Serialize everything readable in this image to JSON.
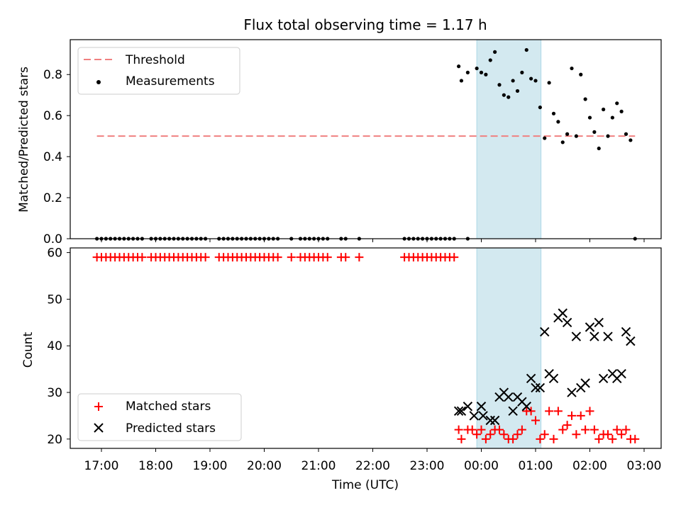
{
  "figure": {
    "title": "Flux total observing time = 1.17 h",
    "xlabel": "Time (UTC)",
    "xticks": [
      "17:00",
      "18:00",
      "19:00",
      "20:00",
      "21:00",
      "22:00",
      "23:00",
      "00:00",
      "01:00",
      "02:00",
      "03:00"
    ],
    "highlight_span": {
      "start": "23:55",
      "end": "01:06",
      "color": "#d3e9f0"
    }
  },
  "chart_data": [
    {
      "type": "scatter",
      "ylabel": "Matched/Predicted stars",
      "ylim": [
        0,
        0.97
      ],
      "yticks": [
        "0.0",
        "0.2",
        "0.4",
        "0.6",
        "0.8"
      ],
      "legend": {
        "placement": "top-left",
        "entries": [
          {
            "label": "Threshold",
            "marker": "dashed-line",
            "color": "#f08080"
          },
          {
            "label": "Measurements",
            "marker": "dot",
            "color": "#000000"
          }
        ]
      },
      "threshold": {
        "value": 0.5,
        "x_start": "16:55",
        "x_end": "02:50",
        "color": "#f08080"
      },
      "series": [
        {
          "name": "Measurements",
          "color": "#000000",
          "points": [
            [
              "16:55",
              0
            ],
            [
              "17:00",
              0
            ],
            [
              "17:05",
              0
            ],
            [
              "17:10",
              0
            ],
            [
              "17:15",
              0
            ],
            [
              "17:20",
              0
            ],
            [
              "17:25",
              0
            ],
            [
              "17:30",
              0
            ],
            [
              "17:35",
              0
            ],
            [
              "17:40",
              0
            ],
            [
              "17:45",
              0
            ],
            [
              "17:55",
              0
            ],
            [
              "18:00",
              0
            ],
            [
              "18:05",
              0
            ],
            [
              "18:10",
              0
            ],
            [
              "18:15",
              0
            ],
            [
              "18:20",
              0
            ],
            [
              "18:25",
              0
            ],
            [
              "18:30",
              0
            ],
            [
              "18:35",
              0
            ],
            [
              "18:40",
              0
            ],
            [
              "18:45",
              0
            ],
            [
              "18:50",
              0
            ],
            [
              "18:55",
              0
            ],
            [
              "19:10",
              0
            ],
            [
              "19:15",
              0
            ],
            [
              "19:20",
              0
            ],
            [
              "19:25",
              0
            ],
            [
              "19:30",
              0
            ],
            [
              "19:35",
              0
            ],
            [
              "19:40",
              0
            ],
            [
              "19:45",
              0
            ],
            [
              "19:50",
              0
            ],
            [
              "19:55",
              0
            ],
            [
              "20:00",
              0
            ],
            [
              "20:05",
              0
            ],
            [
              "20:10",
              0
            ],
            [
              "20:15",
              0
            ],
            [
              "20:30",
              0
            ],
            [
              "20:40",
              0
            ],
            [
              "20:45",
              0
            ],
            [
              "20:50",
              0
            ],
            [
              "20:55",
              0
            ],
            [
              "21:00",
              0
            ],
            [
              "21:05",
              0
            ],
            [
              "21:10",
              0
            ],
            [
              "21:25",
              0
            ],
            [
              "21:30",
              0
            ],
            [
              "21:45",
              0
            ],
            [
              "22:35",
              0
            ],
            [
              "22:40",
              0
            ],
            [
              "22:45",
              0
            ],
            [
              "22:50",
              0
            ],
            [
              "22:55",
              0
            ],
            [
              "23:00",
              0
            ],
            [
              "23:05",
              0
            ],
            [
              "23:10",
              0
            ],
            [
              "23:15",
              0
            ],
            [
              "23:20",
              0
            ],
            [
              "23:25",
              0
            ],
            [
              "23:30",
              0
            ],
            [
              "23:45",
              0
            ],
            [
              "23:35",
              0.84
            ],
            [
              "23:38",
              0.77
            ],
            [
              "23:45",
              0.81
            ],
            [
              "23:55",
              0.83
            ],
            [
              "24:00",
              0.81
            ],
            [
              "24:05",
              0.8
            ],
            [
              "24:10",
              0.87
            ],
            [
              "24:15",
              0.91
            ],
            [
              "24:20",
              0.75
            ],
            [
              "24:25",
              0.7
            ],
            [
              "24:30",
              0.69
            ],
            [
              "24:35",
              0.77
            ],
            [
              "24:40",
              0.72
            ],
            [
              "24:45",
              0.81
            ],
            [
              "24:50",
              0.92
            ],
            [
              "24:55",
              0.78
            ],
            [
              "25:00",
              0.77
            ],
            [
              "25:05",
              0.64
            ],
            [
              "25:10",
              0.49
            ],
            [
              "25:15",
              0.76
            ],
            [
              "25:20",
              0.61
            ],
            [
              "25:25",
              0.57
            ],
            [
              "25:30",
              0.47
            ],
            [
              "25:35",
              0.51
            ],
            [
              "25:40",
              0.83
            ],
            [
              "25:45",
              0.5
            ],
            [
              "25:50",
              0.8
            ],
            [
              "25:55",
              0.68
            ],
            [
              "26:00",
              0.59
            ],
            [
              "26:05",
              0.52
            ],
            [
              "26:10",
              0.44
            ],
            [
              "26:15",
              0.63
            ],
            [
              "26:20",
              0.5
            ],
            [
              "26:25",
              0.59
            ],
            [
              "26:30",
              0.66
            ],
            [
              "26:35",
              0.62
            ],
            [
              "26:40",
              0.51
            ],
            [
              "26:45",
              0.48
            ],
            [
              "26:50",
              0
            ]
          ]
        }
      ]
    },
    {
      "type": "scatter",
      "ylabel": "Count",
      "ylim": [
        18,
        61
      ],
      "yticks": [
        "20",
        "30",
        "40",
        "50",
        "60"
      ],
      "legend": {
        "placement": "bottom-left",
        "entries": [
          {
            "label": "Matched stars",
            "marker": "plus",
            "color": "#ff0000"
          },
          {
            "label": "Predicted stars",
            "marker": "x",
            "color": "#000000"
          }
        ]
      },
      "series": [
        {
          "name": "Matched stars",
          "marker": "plus",
          "color": "#ff0000",
          "points": [
            [
              "16:55",
              59
            ],
            [
              "17:00",
              59
            ],
            [
              "17:05",
              59
            ],
            [
              "17:10",
              59
            ],
            [
              "17:15",
              59
            ],
            [
              "17:20",
              59
            ],
            [
              "17:25",
              59
            ],
            [
              "17:30",
              59
            ],
            [
              "17:35",
              59
            ],
            [
              "17:40",
              59
            ],
            [
              "17:45",
              59
            ],
            [
              "17:55",
              59
            ],
            [
              "18:00",
              59
            ],
            [
              "18:05",
              59
            ],
            [
              "18:10",
              59
            ],
            [
              "18:15",
              59
            ],
            [
              "18:20",
              59
            ],
            [
              "18:25",
              59
            ],
            [
              "18:30",
              59
            ],
            [
              "18:35",
              59
            ],
            [
              "18:40",
              59
            ],
            [
              "18:45",
              59
            ],
            [
              "18:50",
              59
            ],
            [
              "18:55",
              59
            ],
            [
              "19:10",
              59
            ],
            [
              "19:15",
              59
            ],
            [
              "19:20",
              59
            ],
            [
              "19:25",
              59
            ],
            [
              "19:30",
              59
            ],
            [
              "19:35",
              59
            ],
            [
              "19:40",
              59
            ],
            [
              "19:45",
              59
            ],
            [
              "19:50",
              59
            ],
            [
              "19:55",
              59
            ],
            [
              "20:00",
              59
            ],
            [
              "20:05",
              59
            ],
            [
              "20:10",
              59
            ],
            [
              "20:15",
              59
            ],
            [
              "20:30",
              59
            ],
            [
              "20:40",
              59
            ],
            [
              "20:45",
              59
            ],
            [
              "20:50",
              59
            ],
            [
              "20:55",
              59
            ],
            [
              "21:00",
              59
            ],
            [
              "21:05",
              59
            ],
            [
              "21:10",
              59
            ],
            [
              "21:25",
              59
            ],
            [
              "21:30",
              59
            ],
            [
              "21:45",
              59
            ],
            [
              "22:35",
              59
            ],
            [
              "22:40",
              59
            ],
            [
              "22:45",
              59
            ],
            [
              "22:50",
              59
            ],
            [
              "22:55",
              59
            ],
            [
              "23:00",
              59
            ],
            [
              "23:05",
              59
            ],
            [
              "23:10",
              59
            ],
            [
              "23:15",
              59
            ],
            [
              "23:20",
              59
            ],
            [
              "23:25",
              59
            ],
            [
              "23:30",
              59
            ],
            [
              "23:35",
              22
            ],
            [
              "23:38",
              20
            ],
            [
              "23:45",
              22
            ],
            [
              "23:50",
              22
            ],
            [
              "23:55",
              21
            ],
            [
              "24:00",
              22
            ],
            [
              "24:05",
              20
            ],
            [
              "24:10",
              21
            ],
            [
              "24:15",
              22
            ],
            [
              "24:20",
              22
            ],
            [
              "24:25",
              21
            ],
            [
              "24:30",
              20
            ],
            [
              "24:35",
              20
            ],
            [
              "24:40",
              21
            ],
            [
              "24:45",
              22
            ],
            [
              "24:50",
              26
            ],
            [
              "24:55",
              26
            ],
            [
              "25:00",
              24
            ],
            [
              "25:05",
              20
            ],
            [
              "25:10",
              21
            ],
            [
              "25:15",
              26
            ],
            [
              "25:20",
              20
            ],
            [
              "25:25",
              26
            ],
            [
              "25:30",
              22
            ],
            [
              "25:35",
              23
            ],
            [
              "25:40",
              25
            ],
            [
              "25:45",
              21
            ],
            [
              "25:50",
              25
            ],
            [
              "25:55",
              22
            ],
            [
              "26:00",
              26
            ],
            [
              "26:05",
              22
            ],
            [
              "26:10",
              20
            ],
            [
              "26:15",
              21
            ],
            [
              "26:20",
              21
            ],
            [
              "26:25",
              20
            ],
            [
              "26:30",
              22
            ],
            [
              "26:35",
              21
            ],
            [
              "26:40",
              22
            ],
            [
              "26:45",
              20
            ],
            [
              "26:50",
              20
            ]
          ]
        },
        {
          "name": "Predicted stars",
          "marker": "x",
          "color": "#000000",
          "points": [
            [
              "23:35",
              26
            ],
            [
              "23:38",
              26
            ],
            [
              "23:45",
              27
            ],
            [
              "23:52",
              25
            ],
            [
              "24:00",
              27
            ],
            [
              "24:02",
              25
            ],
            [
              "24:10",
              24
            ],
            [
              "24:15",
              24
            ],
            [
              "24:20",
              29
            ],
            [
              "24:25",
              30
            ],
            [
              "24:30",
              29
            ],
            [
              "24:35",
              26
            ],
            [
              "24:40",
              29
            ],
            [
              "24:45",
              28
            ],
            [
              "24:50",
              27
            ],
            [
              "24:55",
              33
            ],
            [
              "25:00",
              31
            ],
            [
              "25:05",
              31
            ],
            [
              "25:10",
              43
            ],
            [
              "25:15",
              34
            ],
            [
              "25:20",
              33
            ],
            [
              "25:25",
              46
            ],
            [
              "25:30",
              47
            ],
            [
              "25:35",
              45
            ],
            [
              "25:40",
              30
            ],
            [
              "25:45",
              42
            ],
            [
              "25:50",
              31
            ],
            [
              "25:55",
              32
            ],
            [
              "26:00",
              44
            ],
            [
              "26:05",
              42
            ],
            [
              "26:10",
              45
            ],
            [
              "26:15",
              33
            ],
            [
              "26:20",
              42
            ],
            [
              "26:25",
              34
            ],
            [
              "26:30",
              33
            ],
            [
              "26:35",
              34
            ],
            [
              "26:40",
              43
            ],
            [
              "26:45",
              41
            ]
          ]
        }
      ]
    }
  ]
}
